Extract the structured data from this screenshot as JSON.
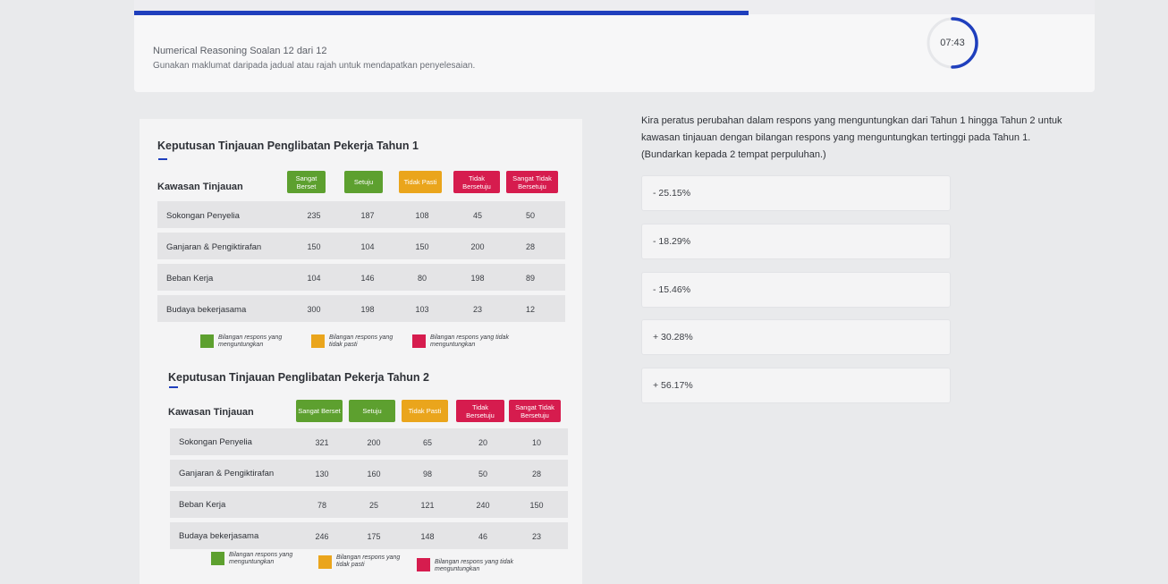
{
  "header": {
    "progress_fraction": 0.64,
    "question_title": "Numerical Reasoning Soalan 12 dari 12",
    "instruction": "Gunakan maklumat daripada jadual atau rajah untuk mendapatkan penyelesaian.",
    "timer": "07:43",
    "timer_fraction_remaining": 0.5
  },
  "colors": {
    "accent": "#1f3fbd",
    "agree": "#5da02f",
    "unsure": "#eaa51c",
    "disagree": "#d61c4e"
  },
  "column_headers": {
    "region": "Kawasan Tinjauan",
    "strongly_agree": "Sangat Berset",
    "agree": "Setuju",
    "unsure": "Tidak Pasti",
    "disagree": "Tidak Bersetuju",
    "strongly_disagree": "Sangat Tidak Bersetuju"
  },
  "legend": {
    "positive": "Bilangan respons yang menguntungkan",
    "unsure": "Bilangan respons yang tidak pasti",
    "negative": "Bilangan respons yang tidak menguntungkan"
  },
  "tables": [
    {
      "title": "Keputusan Tinjauan Penglibatan Pekerja Tahun 1",
      "rows": [
        {
          "label": "Sokongan Penyelia",
          "values": [
            "235",
            "187",
            "108",
            "45",
            "50"
          ]
        },
        {
          "label": "Ganjaran & Pengiktirafan",
          "values": [
            "150",
            "104",
            "150",
            "200",
            "28"
          ]
        },
        {
          "label": "Beban Kerja",
          "values": [
            "104",
            "146",
            "80",
            "198",
            "89"
          ]
        },
        {
          "label": "Budaya bekerjasama",
          "values": [
            "300",
            "198",
            "103",
            "23",
            "12"
          ]
        }
      ]
    },
    {
      "title": "Keputusan Tinjauan Penglibatan Pekerja Tahun 2",
      "rows": [
        {
          "label": "Sokongan Penyelia",
          "values": [
            "321",
            "200",
            "65",
            "20",
            "10"
          ]
        },
        {
          "label": "Ganjaran & Pengiktirafan",
          "values": [
            "130",
            "160",
            "98",
            "50",
            "28"
          ]
        },
        {
          "label": "Beban Kerja",
          "values": [
            "78",
            "25",
            "121",
            "240",
            "150"
          ]
        },
        {
          "label": "Budaya bekerjasama",
          "values": [
            "246",
            "175",
            "148",
            "46",
            "23"
          ]
        }
      ]
    }
  ],
  "question": {
    "text": "Kira peratus perubahan dalam respons yang menguntungkan dari Tahun 1 hingga Tahun 2 untuk kawasan tinjauan dengan bilangan respons yang menguntungkan tertinggi pada Tahun 1. (Bundarkan kepada 2 tempat perpuluhan.)",
    "options": [
      "- 25.15%",
      "- 18.29%",
      "- 15.46%",
      "+ 30.28%",
      "+ 56.17%"
    ]
  }
}
